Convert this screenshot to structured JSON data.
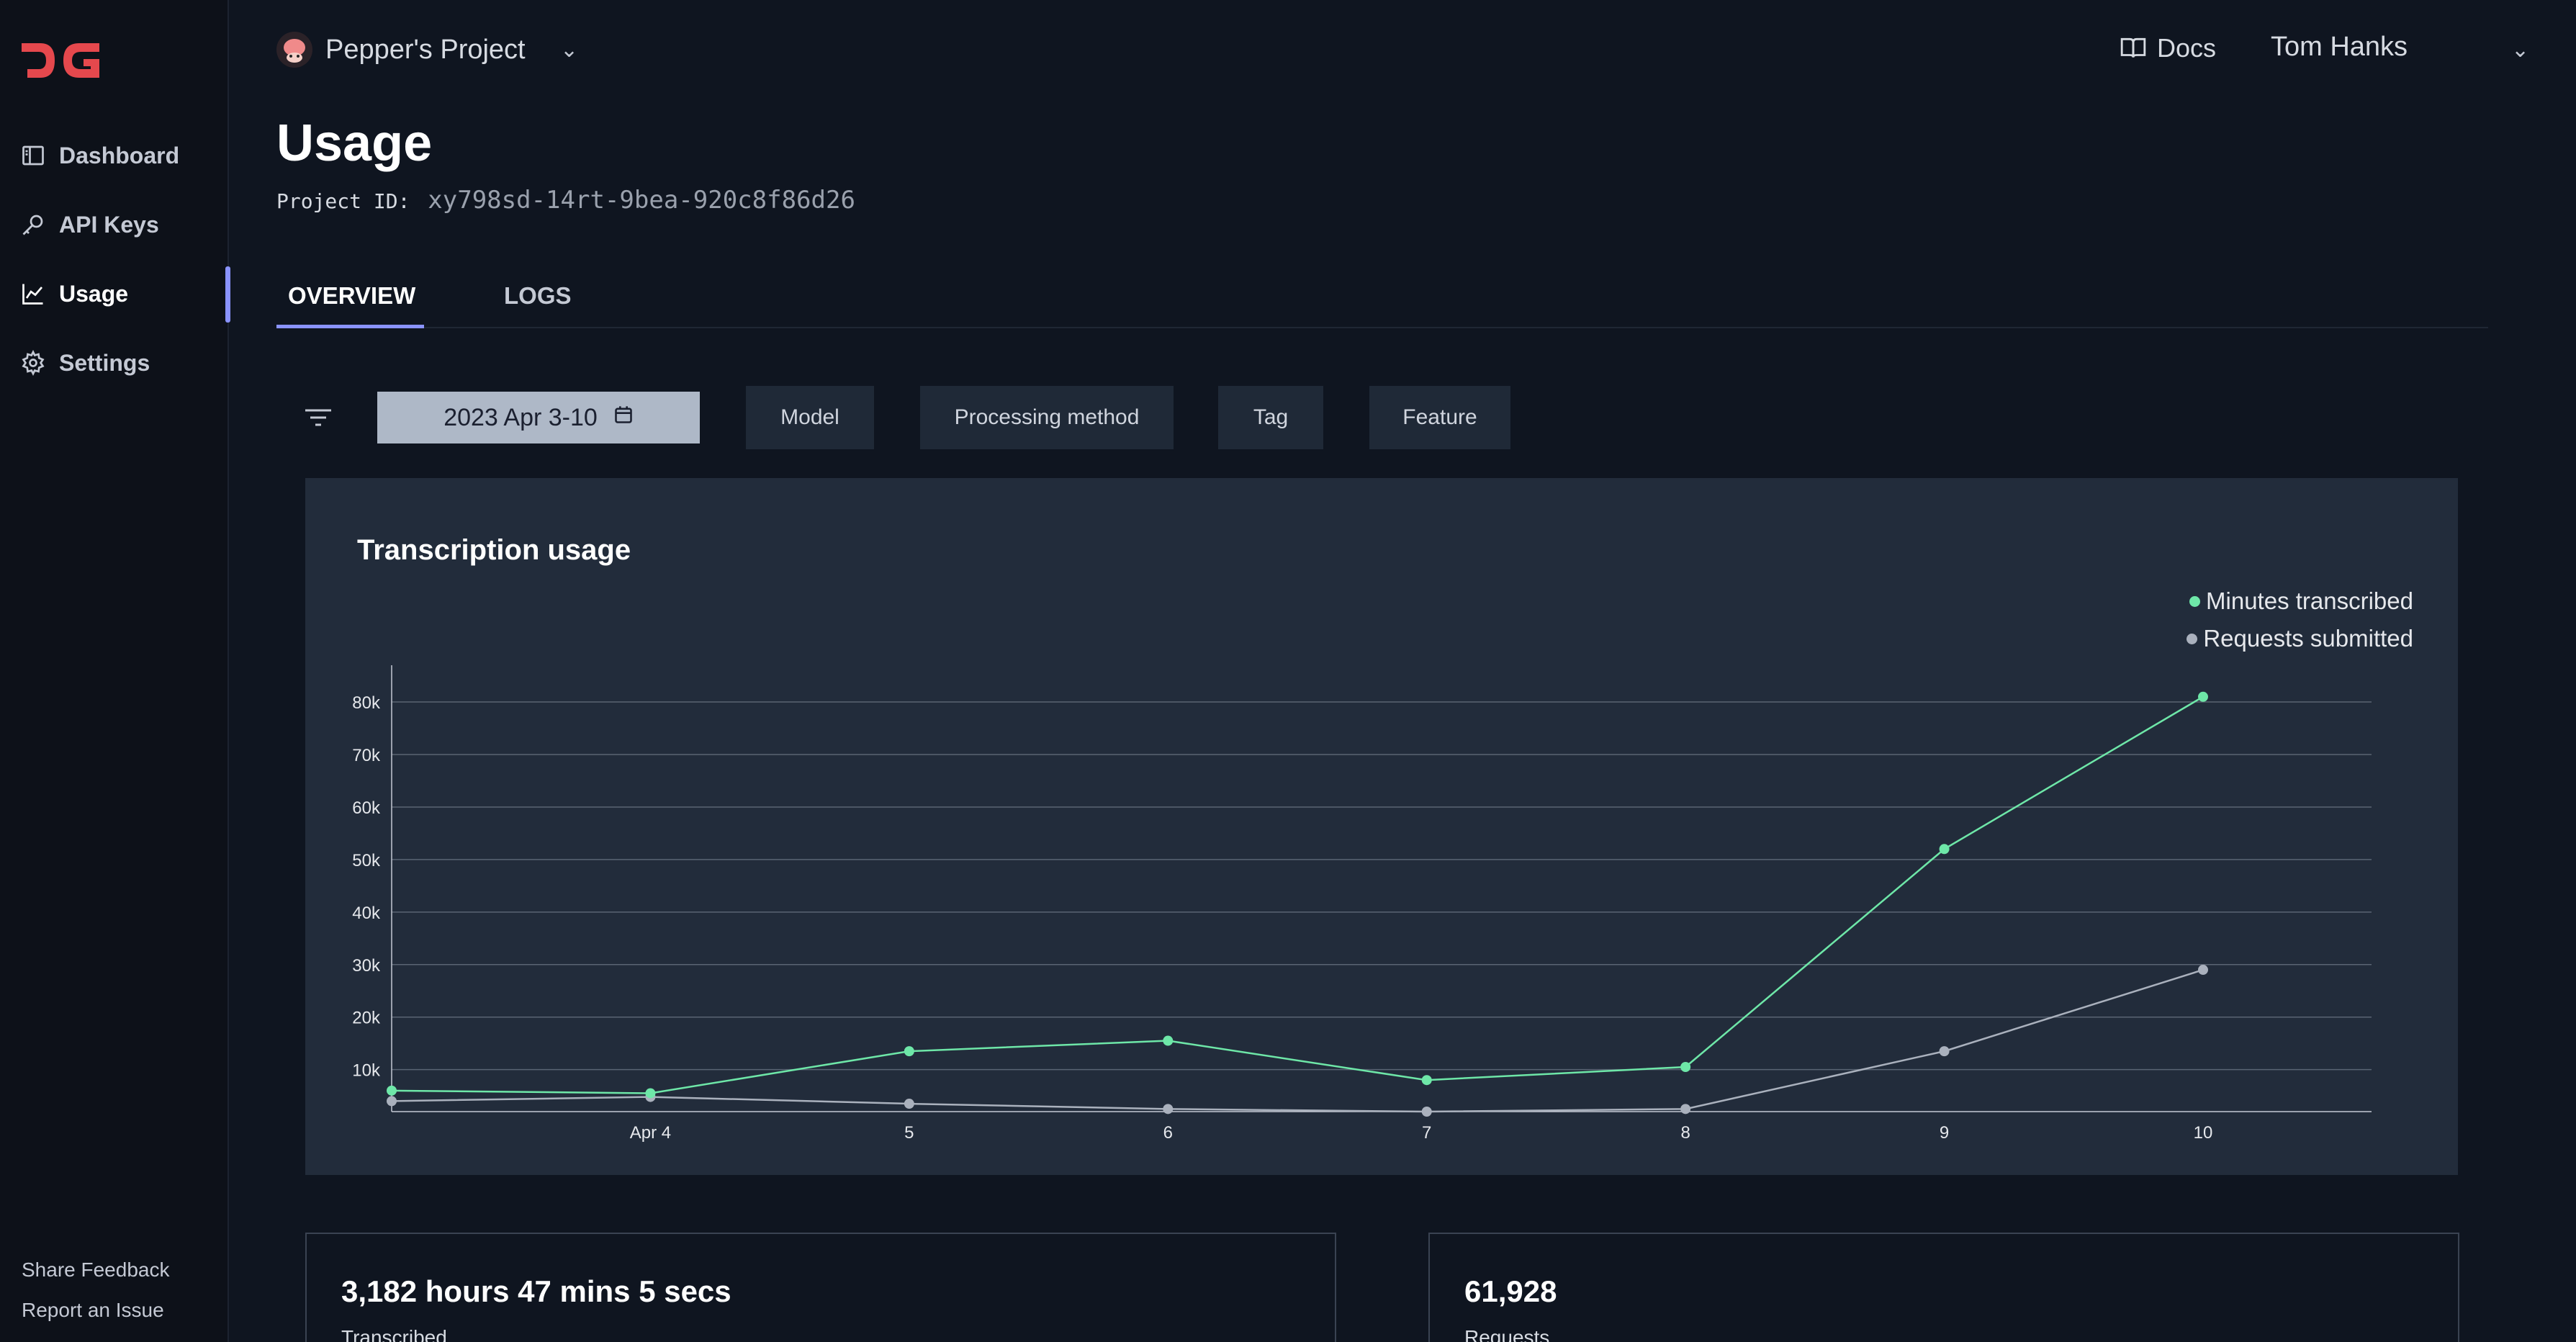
{
  "sidebar": {
    "logo_text": "DG",
    "items": [
      {
        "label": "Dashboard",
        "icon": "dashboard-icon"
      },
      {
        "label": "API Keys",
        "icon": "key-icon"
      },
      {
        "label": "Usage",
        "icon": "chart-icon",
        "active": true
      },
      {
        "label": "Settings",
        "icon": "gear-icon"
      }
    ],
    "footer": {
      "feedback": "Share Feedback",
      "report": "Report an Issue"
    }
  },
  "header": {
    "project_name": "Pepper's Project",
    "docs_label": "Docs",
    "user_name": "Tom Hanks"
  },
  "page": {
    "title": "Usage",
    "project_id_label": "Project ID:",
    "project_id": "xy798sd-14rt-9bea-920c8f86d26"
  },
  "tabs": [
    {
      "label": "OVERVIEW",
      "active": true
    },
    {
      "label": "LOGS",
      "active": false
    }
  ],
  "filters": {
    "date_range": "2023 Apr 3-10",
    "buttons": [
      "Model",
      "Processing method",
      "Tag",
      "Feature"
    ]
  },
  "chart_card": {
    "title": "Transcription usage"
  },
  "colors": {
    "accent": "#8a93ff",
    "minutes_series": "#6ee7a8",
    "requests_series": "#aab1bd",
    "brand_logo": "#e5484d"
  },
  "chart_data": {
    "type": "line",
    "title": "Transcription usage",
    "categories": [
      "",
      "Apr 4",
      "5",
      "6",
      "7",
      "8",
      "9",
      "10"
    ],
    "y_ticks": [
      "10k",
      "20k",
      "30k",
      "40k",
      "50k",
      "60k",
      "70k",
      "80k"
    ],
    "ylim": [
      2000,
      87000
    ],
    "grid": true,
    "legend_position": "top-right",
    "series": [
      {
        "name": "Minutes transcribed",
        "color": "#6ee7a8",
        "values": [
          6000,
          5500,
          13500,
          15500,
          8000,
          10500,
          52000,
          81000
        ]
      },
      {
        "name": "Requests submitted",
        "color": "#aab1bd",
        "values": [
          4000,
          4800,
          3500,
          2500,
          2000,
          2500,
          13500,
          29000
        ]
      }
    ]
  },
  "stats": [
    {
      "value": "3,182 hours 47 mins 5 secs",
      "label": "Transcribed"
    },
    {
      "value": "61,928",
      "label": "Requests"
    }
  ]
}
